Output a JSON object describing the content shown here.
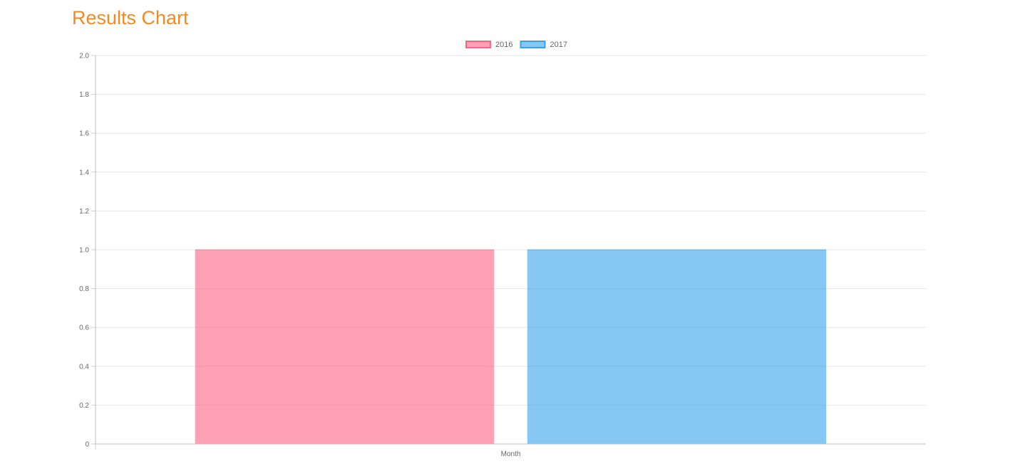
{
  "page": {
    "title": "Results Chart",
    "title_color": "#f38a1f"
  },
  "chart_data": {
    "type": "bar",
    "categories": [
      "Month"
    ],
    "series": [
      {
        "name": "2016",
        "values": [
          1
        ],
        "fill": "#ff6384",
        "fill_opacity": 0.6,
        "border": "#ff6384"
      },
      {
        "name": "2017",
        "values": [
          1
        ],
        "fill": "#36a2eb",
        "fill_opacity": 0.6,
        "border": "#36a2eb"
      }
    ],
    "ylim": [
      0,
      2.0
    ],
    "yticks": [
      "0",
      "0.2",
      "0.4",
      "0.6",
      "0.8",
      "1.0",
      "1.2",
      "1.4",
      "1.6",
      "1.8",
      "2.0"
    ],
    "grid": true,
    "legend_position": "top-center"
  }
}
